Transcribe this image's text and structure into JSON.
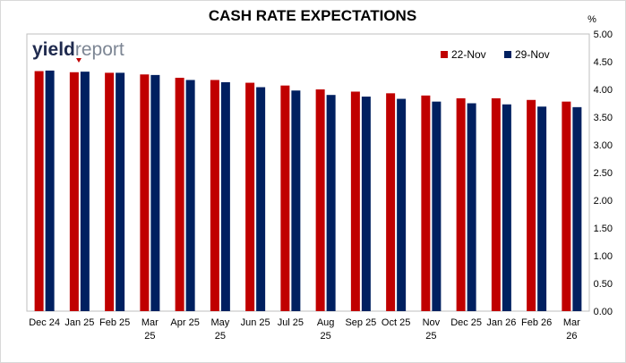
{
  "chart_data": {
    "type": "bar",
    "title": "CASH RATE EXPECTATIONS",
    "unit_label": "%",
    "categories": [
      [
        "Dec 24"
      ],
      [
        "Jan 25"
      ],
      [
        "Feb 25"
      ],
      [
        "Mar",
        "25"
      ],
      [
        "Apr 25"
      ],
      [
        "May",
        "25"
      ],
      [
        "Jun 25"
      ],
      [
        "Jul 25"
      ],
      [
        "Aug",
        "25"
      ],
      [
        "Sep 25"
      ],
      [
        "Oct 25"
      ],
      [
        "Nov",
        "25"
      ],
      [
        "Dec 25"
      ],
      [
        "Jan 26"
      ],
      [
        "Feb 26"
      ],
      [
        "Mar",
        "26"
      ]
    ],
    "series": [
      {
        "name": "22-Nov",
        "color": "#c00000",
        "values": [
          4.33,
          4.31,
          4.3,
          4.27,
          4.21,
          4.17,
          4.12,
          4.07,
          4.0,
          3.96,
          3.93,
          3.89,
          3.84,
          3.84,
          3.81,
          3.78
        ]
      },
      {
        "name": "29-Nov",
        "color": "#002060",
        "values": [
          4.34,
          4.32,
          4.3,
          4.26,
          4.17,
          4.13,
          4.04,
          3.98,
          3.9,
          3.87,
          3.83,
          3.78,
          3.75,
          3.73,
          3.69,
          3.68
        ]
      }
    ],
    "ylim": [
      0,
      5
    ],
    "yticks": [
      "0.00",
      "0.50",
      "1.00",
      "1.50",
      "2.00",
      "2.50",
      "3.00",
      "3.50",
      "4.00",
      "4.50",
      "5.00"
    ],
    "grid": false,
    "legend_position": "top-right"
  },
  "logo": {
    "part1": "yield",
    "part2": "report"
  }
}
